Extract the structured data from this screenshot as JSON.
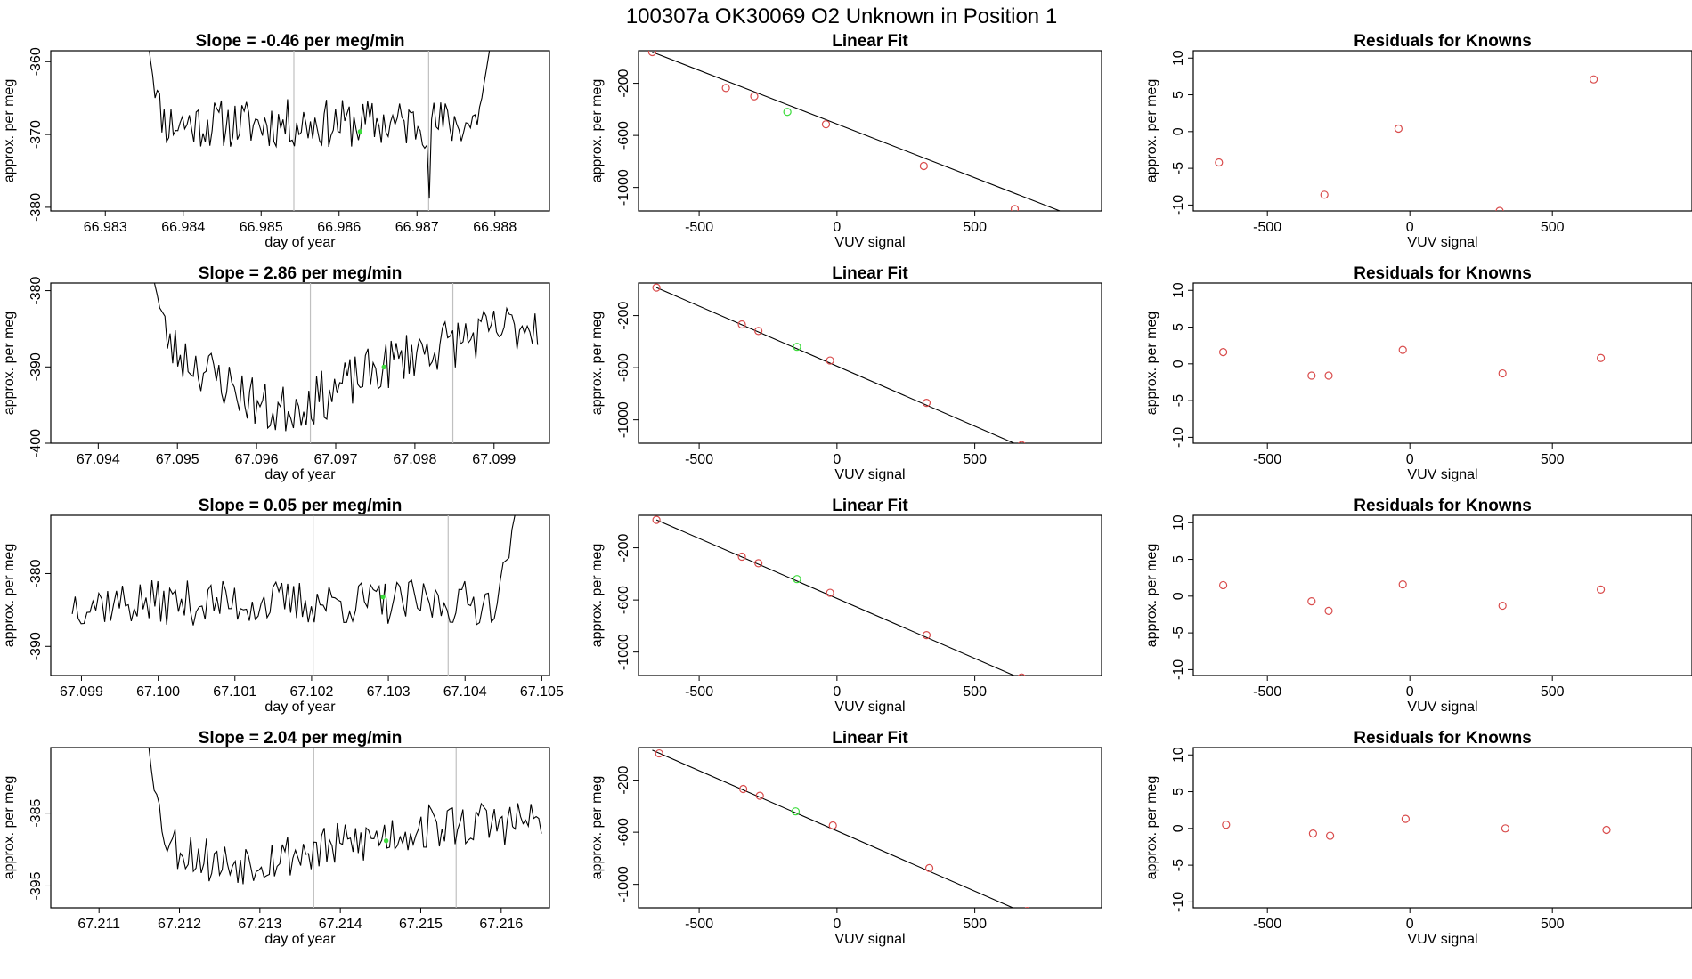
{
  "figure_title": "100307a      OK30069   O2 Unknown in Position  1",
  "colors": {
    "known": "#d94c4c",
    "unknown": "#3ddc3d",
    "line": "#000000",
    "vline": "#c0c0c0"
  },
  "chart_data": [
    {
      "type": "line",
      "id": "ts1",
      "title": "Slope =  -0.46  per meg/min",
      "xlabel": "day of year",
      "ylabel": "approx. per meg",
      "xlim": [
        66.9823,
        66.9887
      ],
      "ylim": [
        -380.5,
        -358.5
      ],
      "xticks": [
        "66.983",
        "66.984",
        "66.985",
        "66.986",
        "66.987",
        "66.988"
      ],
      "yticks": [
        "-360",
        "-370",
        "-380"
      ],
      "vlines": [
        66.98542,
        66.98715
      ],
      "unknown_point": {
        "x": 66.98627,
        "y": -369.6
      },
      "trace": {
        "start": 66.98355,
        "end": 66.98795,
        "center": -368.5,
        "amp": 2.6,
        "seed": 11,
        "edge_up": [
          -357,
          -357
        ],
        "spikes": [
          [
            66.98716,
            -378.8
          ]
        ]
      }
    },
    {
      "type": "line",
      "id": "ts2",
      "title": "Slope =  2.86  per meg/min",
      "xlabel": "day of year",
      "ylabel": "approx. per meg",
      "xlim": [
        67.0934,
        67.0997
      ],
      "ylim": [
        -400,
        -379
      ],
      "xticks": [
        "67.094",
        "67.095",
        "67.096",
        "67.097",
        "67.098",
        "67.099"
      ],
      "yticks": [
        "-380",
        "-390",
        "-400"
      ],
      "vlines": [
        67.09668,
        67.09848
      ],
      "unknown_point": {
        "x": 67.09761,
        "y": -390.0
      },
      "trace": {
        "start": 67.09468,
        "end": 67.09955,
        "trend": [
          [
            67.09468,
            -386
          ],
          [
            67.0962,
            -396
          ],
          [
            67.0968,
            -394
          ],
          [
            67.098,
            -388
          ],
          [
            67.09955,
            -384
          ]
        ],
        "amp": 2.6,
        "seed": 23,
        "edge_up": [
          -377,
          null
        ],
        "spikes": []
      }
    },
    {
      "type": "line",
      "id": "ts3",
      "title": "Slope =  0.05  per meg/min",
      "xlabel": "day of year",
      "ylabel": "approx. per meg",
      "xlim": [
        67.0986,
        67.1051
      ],
      "ylim": [
        -394,
        -372
      ],
      "xticks": [
        "67.099",
        "67.100",
        "67.101",
        "67.102",
        "67.103",
        "67.104",
        "67.105"
      ],
      "yticks": [
        "-380",
        "-390"
      ],
      "vlines": [
        67.10202,
        67.10378
      ],
      "unknown_point": {
        "x": 67.10293,
        "y": -383.2
      },
      "trace": {
        "start": 67.09888,
        "end": 67.10465,
        "center": -384.0,
        "amp": 2.4,
        "seed": 37,
        "edge_up": [
          null,
          -372
        ],
        "spikes": []
      }
    },
    {
      "type": "line",
      "id": "ts4",
      "title": "Slope =  2.04  per meg/min",
      "xlabel": "day of year",
      "ylabel": "approx. per meg",
      "xlim": [
        67.2104,
        67.2166
      ],
      "ylim": [
        -398,
        -376
      ],
      "xticks": [
        "67.211",
        "67.212",
        "67.213",
        "67.214",
        "67.215",
        "67.216"
      ],
      "yticks": [
        "-385",
        "-395"
      ],
      "vlines": [
        67.21367,
        67.21544
      ],
      "unknown_point": {
        "x": 67.21457,
        "y": -388.8
      },
      "trace": {
        "start": 67.21162,
        "end": 67.2165,
        "trend": [
          [
            67.21162,
            -388
          ],
          [
            67.2125,
            -392
          ],
          [
            67.2138,
            -390
          ],
          [
            67.215,
            -387
          ],
          [
            67.2165,
            -386
          ]
        ],
        "amp": 2.5,
        "seed": 53,
        "edge_up": [
          -376,
          null
        ],
        "spikes": []
      }
    },
    {
      "type": "scatter",
      "id": "fit1",
      "title": "Linear Fit",
      "xlabel": "VUV signal",
      "ylabel": "approx. per meg",
      "xlim": [
        -720,
        960
      ],
      "ylim": [
        -1180,
        50
      ],
      "xticks": [
        "-500",
        "0",
        "500"
      ],
      "yticks": [
        "-200",
        "-600",
        "-1000"
      ],
      "known": [
        [
          -670,
          40
        ],
        [
          -403,
          -236
        ],
        [
          -300,
          -300
        ],
        [
          -40,
          -515
        ],
        [
          315,
          -835
        ],
        [
          645,
          -1165
        ]
      ],
      "unknown": [
        [
          -180,
          -420
        ]
      ],
      "fit_line": [
        [
          -670,
          40
        ],
        [
          930,
          -1280
        ]
      ]
    },
    {
      "type": "scatter",
      "id": "fit2",
      "title": "Linear Fit",
      "xlabel": "VUV signal",
      "ylabel": "approx. per meg",
      "xlim": [
        -720,
        960
      ],
      "ylim": [
        -1180,
        50
      ],
      "xticks": [
        "-500",
        "0",
        "500"
      ],
      "yticks": [
        "-200",
        "-600",
        "-1000"
      ],
      "known": [
        [
          -655,
          15
        ],
        [
          -345,
          -268
        ],
        [
          -285,
          -318
        ],
        [
          -25,
          -545
        ],
        [
          325,
          -870
        ],
        [
          670,
          -1195
        ]
      ],
      "unknown": [
        [
          -145,
          -440
        ]
      ],
      "fit_line": [
        [
          -655,
          15
        ],
        [
          930,
          -1445
        ]
      ]
    },
    {
      "type": "scatter",
      "id": "fit3",
      "title": "Linear Fit",
      "xlabel": "VUV signal",
      "ylabel": "approx. per meg",
      "xlim": [
        -720,
        960
      ],
      "ylim": [
        -1180,
        50
      ],
      "xticks": [
        "-500",
        "0",
        "500"
      ],
      "yticks": [
        "-200",
        "-600",
        "-1000"
      ],
      "known": [
        [
          -655,
          15
        ],
        [
          -345,
          -268
        ],
        [
          -285,
          -318
        ],
        [
          -25,
          -545
        ],
        [
          325,
          -870
        ],
        [
          670,
          -1195
        ]
      ],
      "unknown": [
        [
          -145,
          -440
        ]
      ],
      "fit_line": [
        [
          -655,
          15
        ],
        [
          930,
          -1445
        ]
      ]
    },
    {
      "type": "scatter",
      "id": "fit4",
      "title": "Linear Fit",
      "xlabel": "VUV signal",
      "ylabel": "approx. per meg",
      "xlim": [
        -720,
        960
      ],
      "ylim": [
        -1180,
        50
      ],
      "xticks": [
        "-500",
        "0",
        "500"
      ],
      "yticks": [
        "-200",
        "-600",
        "-1000"
      ],
      "known": [
        [
          -645,
          5
        ],
        [
          -340,
          -268
        ],
        [
          -280,
          -320
        ],
        [
          -15,
          -548
        ],
        [
          335,
          -875
        ],
        [
          690,
          -1205
        ]
      ],
      "unknown": [
        [
          -150,
          -440
        ]
      ],
      "fit_line": [
        [
          -670,
          30
        ],
        [
          930,
          -1450
        ]
      ]
    },
    {
      "type": "scatter",
      "id": "res1",
      "title": "Residuals for Knowns",
      "xlabel": "VUV signal",
      "ylabel": "approx. per meg",
      "xlim": [
        -760,
        990
      ],
      "ylim": [
        -10.8,
        11
      ],
      "xticks": [
        "-500",
        "0",
        "500"
      ],
      "yticks": [
        "10",
        "5",
        "0",
        "-5",
        "-10"
      ],
      "known": [
        [
          -670,
          -4.2
        ],
        [
          -300,
          -8.6
        ],
        [
          -40,
          0.4
        ],
        [
          315,
          -10.8
        ],
        [
          645,
          7.1
        ]
      ]
    },
    {
      "type": "scatter",
      "id": "res2",
      "title": "Residuals for Knowns",
      "xlabel": "VUV signal",
      "ylabel": "approx. per meg",
      "xlim": [
        -760,
        990
      ],
      "ylim": [
        -10.8,
        11
      ],
      "xticks": [
        "-500",
        "0",
        "500"
      ],
      "yticks": [
        "10",
        "5",
        "0",
        "-5",
        "-10"
      ],
      "known": [
        [
          -655,
          1.6
        ],
        [
          -345,
          -1.6
        ],
        [
          -285,
          -1.6
        ],
        [
          -25,
          1.9
        ],
        [
          325,
          -1.3
        ],
        [
          670,
          0.8
        ]
      ]
    },
    {
      "type": "scatter",
      "id": "res3",
      "title": "Residuals for Knowns",
      "xlabel": "VUV signal",
      "ylabel": "approx. per meg",
      "xlim": [
        -760,
        990
      ],
      "ylim": [
        -10.8,
        11
      ],
      "xticks": [
        "-500",
        "0",
        "500"
      ],
      "yticks": [
        "10",
        "5",
        "0",
        "-5",
        "-10"
      ],
      "known": [
        [
          -655,
          1.5
        ],
        [
          -345,
          -0.7
        ],
        [
          -285,
          -2.0
        ],
        [
          -25,
          1.6
        ],
        [
          325,
          -1.3
        ],
        [
          670,
          0.9
        ]
      ]
    },
    {
      "type": "scatter",
      "id": "res4",
      "title": "Residuals for Knowns",
      "xlabel": "VUV signal",
      "ylabel": "approx. per meg",
      "xlim": [
        -760,
        990
      ],
      "ylim": [
        -10.8,
        11
      ],
      "xticks": [
        "-500",
        "0",
        "500"
      ],
      "yticks": [
        "10",
        "5",
        "0",
        "-5",
        "-10"
      ],
      "known": [
        [
          -645,
          0.5
        ],
        [
          -340,
          -0.7
        ],
        [
          -280,
          -1.0
        ],
        [
          -15,
          1.3
        ],
        [
          335,
          0.0
        ],
        [
          690,
          -0.2
        ]
      ]
    }
  ]
}
